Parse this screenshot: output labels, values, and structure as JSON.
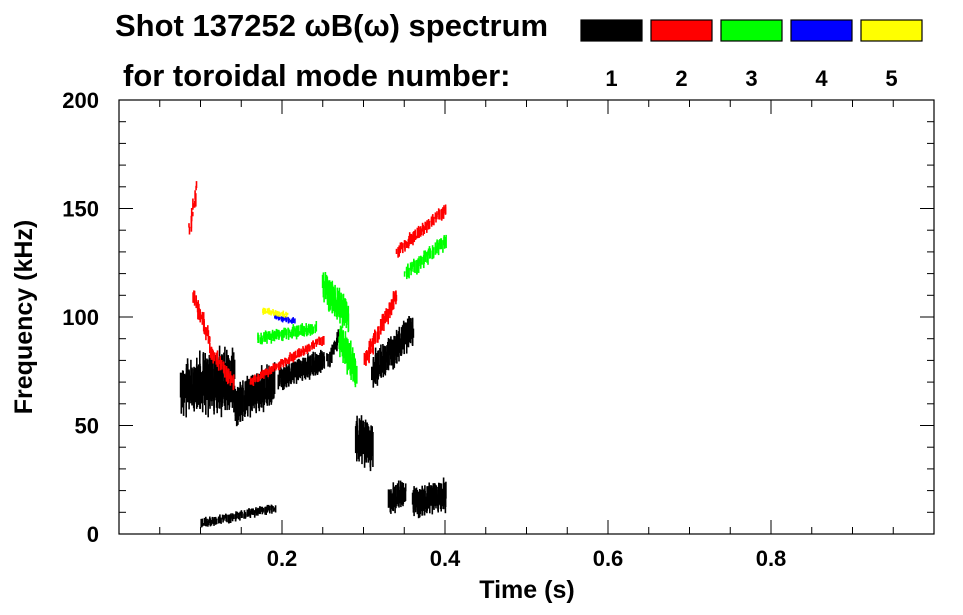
{
  "chart_data": {
    "type": "scatter",
    "title_line1": "Shot 137252 ωB(ω) spectrum",
    "title_line2": "for toroidal mode number:",
    "xlabel": "Time (s)",
    "ylabel": "Frequency (kHz)",
    "xlim": [
      0.0,
      1.0
    ],
    "ylim": [
      0,
      200
    ],
    "xticks": [
      0.2,
      0.4,
      0.6,
      0.8
    ],
    "xtick_labels": [
      "0.2",
      "0.4",
      "0.6",
      "0.8"
    ],
    "yticks": [
      0,
      50,
      100,
      150,
      200
    ],
    "ytick_labels": [
      "0",
      "50",
      "100",
      "150",
      "200"
    ],
    "x_minor_step": 0.05,
    "y_minor_step": 10,
    "grid": false,
    "legend_position": "top-right",
    "legend": [
      {
        "label": "1",
        "color": "#000000"
      },
      {
        "label": "2",
        "color": "#ff0000"
      },
      {
        "label": "3",
        "color": "#00ff00"
      },
      {
        "label": "4",
        "color": "#0000ff"
      },
      {
        "label": "5",
        "color": "#ffff00"
      }
    ],
    "series": [
      {
        "mode": "1",
        "color": "#000000",
        "segments": [
          {
            "t0": 0.075,
            "t1": 0.095,
            "f0": 65,
            "f1": 70,
            "spread": 14
          },
          {
            "t0": 0.095,
            "t1": 0.14,
            "f0": 68,
            "f1": 72,
            "spread": 18
          },
          {
            "t0": 0.14,
            "t1": 0.19,
            "f0": 60,
            "f1": 70,
            "spread": 12
          },
          {
            "t0": 0.195,
            "t1": 0.25,
            "f0": 72,
            "f1": 80,
            "spread": 7
          },
          {
            "t0": 0.255,
            "t1": 0.27,
            "f0": 80,
            "f1": 92,
            "spread": 5
          },
          {
            "t0": 0.29,
            "t1": 0.31,
            "f0": 45,
            "f1": 40,
            "spread": 14
          },
          {
            "t0": 0.31,
            "t1": 0.36,
            "f0": 75,
            "f1": 95,
            "spread": 10
          },
          {
            "t0": 0.33,
            "t1": 0.35,
            "f0": 15,
            "f1": 20,
            "spread": 8
          },
          {
            "t0": 0.36,
            "t1": 0.4,
            "f0": 15,
            "f1": 18,
            "spread": 9
          },
          {
            "t0": 0.1,
            "t1": 0.19,
            "f0": 5,
            "f1": 12,
            "spread": 3
          }
        ]
      },
      {
        "mode": "2",
        "color": "#ff0000",
        "segments": [
          {
            "t0": 0.09,
            "t1": 0.11,
            "f0": 110,
            "f1": 90,
            "spread": 5
          },
          {
            "t0": 0.11,
            "t1": 0.14,
            "f0": 85,
            "f1": 70,
            "spread": 5
          },
          {
            "t0": 0.16,
            "t1": 0.25,
            "f0": 70,
            "f1": 90,
            "spread": 3
          },
          {
            "t0": 0.3,
            "t1": 0.34,
            "f0": 80,
            "f1": 110,
            "spread": 6
          },
          {
            "t0": 0.34,
            "t1": 0.4,
            "f0": 130,
            "f1": 150,
            "spread": 4
          },
          {
            "t0": 0.085,
            "t1": 0.095,
            "f0": 140,
            "f1": 160,
            "spread": 5
          }
        ]
      },
      {
        "mode": "3",
        "color": "#00ff00",
        "segments": [
          {
            "t0": 0.17,
            "t1": 0.24,
            "f0": 90,
            "f1": 95,
            "spread": 4
          },
          {
            "t0": 0.25,
            "t1": 0.28,
            "f0": 115,
            "f1": 100,
            "spread": 10
          },
          {
            "t0": 0.27,
            "t1": 0.29,
            "f0": 90,
            "f1": 75,
            "spread": 10
          },
          {
            "t0": 0.35,
            "t1": 0.4,
            "f0": 120,
            "f1": 135,
            "spread": 5
          }
        ]
      },
      {
        "mode": "4",
        "color": "#0000ff",
        "segments": [
          {
            "t0": 0.19,
            "t1": 0.215,
            "f0": 100,
            "f1": 98,
            "spread": 2
          }
        ]
      },
      {
        "mode": "5",
        "color": "#ffff00",
        "segments": [
          {
            "t0": 0.175,
            "t1": 0.205,
            "f0": 103,
            "f1": 101,
            "spread": 2
          }
        ]
      }
    ]
  }
}
